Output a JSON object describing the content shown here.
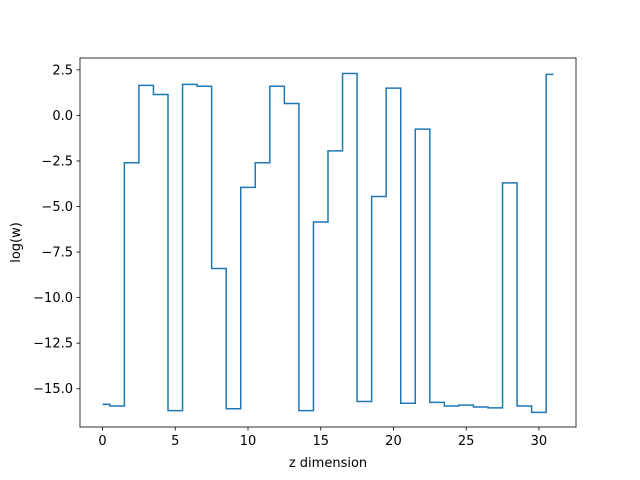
{
  "chart_data": {
    "type": "line",
    "step": "mid",
    "title": "",
    "xlabel": "z dimension",
    "ylabel": "log(w)",
    "xlim": [
      -1.55,
      32.55
    ],
    "ylim": [
      -17.1,
      3.15
    ],
    "xticks": [
      0,
      5,
      10,
      15,
      20,
      25,
      30
    ],
    "xtick_labels": [
      "0",
      "5",
      "10",
      "15",
      "20",
      "25",
      "30"
    ],
    "yticks": [
      2.5,
      0.0,
      -2.5,
      -5.0,
      -7.5,
      -10.0,
      -12.5,
      -15.0
    ],
    "ytick_labels": [
      "2.5",
      "0.0",
      "−2.5",
      "−5.0",
      "−7.5",
      "−10.0",
      "−12.5",
      "−15.0"
    ],
    "grid": false,
    "series": [
      {
        "color": "#1f77b4",
        "x": [
          0,
          1,
          2,
          3,
          4,
          5,
          6,
          7,
          8,
          9,
          10,
          11,
          12,
          13,
          14,
          15,
          16,
          17,
          18,
          19,
          20,
          21,
          22,
          23,
          24,
          25,
          26,
          27,
          28,
          29,
          30,
          31
        ],
        "values": [
          -15.85,
          -15.95,
          -2.6,
          1.65,
          1.15,
          -16.2,
          1.7,
          1.6,
          -8.4,
          -16.1,
          -3.95,
          -2.6,
          1.6,
          0.65,
          -16.2,
          -5.85,
          -1.95,
          2.3,
          -15.7,
          -4.45,
          1.5,
          -15.8,
          -0.75,
          -15.75,
          -15.95,
          -15.9,
          -16.0,
          -16.05,
          -3.7,
          -15.95,
          -16.3,
          2.25
        ]
      }
    ]
  }
}
